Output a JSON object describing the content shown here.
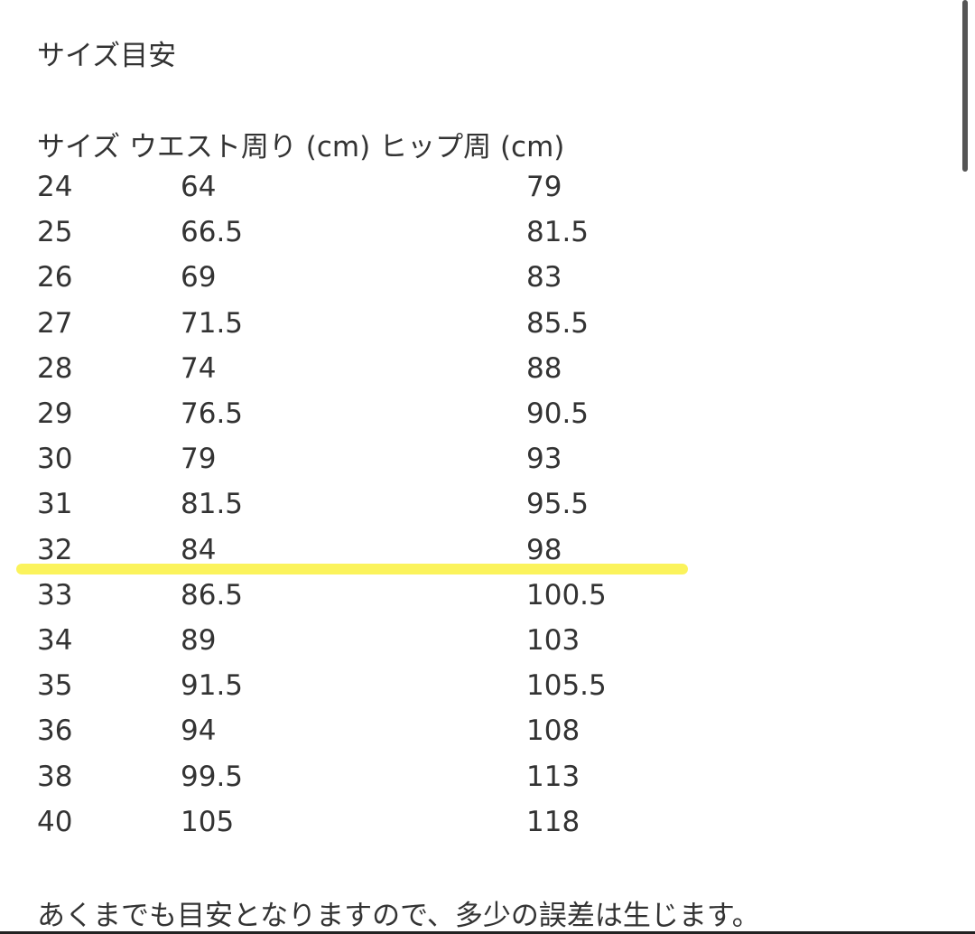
{
  "title": "サイズ目安",
  "table": {
    "headers": [
      "サイズ",
      "ウエスト周り (cm)",
      "ヒップ周 (cm)"
    ],
    "rows": [
      [
        "24",
        "64",
        "79"
      ],
      [
        "25",
        "66.5",
        "81.5"
      ],
      [
        "26",
        "69",
        "83"
      ],
      [
        "27",
        "71.5",
        "85.5"
      ],
      [
        "28",
        "74",
        "88"
      ],
      [
        "29",
        "76.5",
        "90.5"
      ],
      [
        "30",
        "79",
        "93"
      ],
      [
        "31",
        "81.5",
        "95.5"
      ],
      [
        "32",
        "84",
        "98"
      ],
      [
        "33",
        "86.5",
        "100.5"
      ],
      [
        "34",
        "89",
        "103"
      ],
      [
        "35",
        "91.5",
        "105.5"
      ],
      [
        "36",
        "94",
        "108"
      ],
      [
        "38",
        "99.5",
        "113"
      ],
      [
        "40",
        "105",
        "118"
      ]
    ],
    "highlighted_size": "32",
    "highlight_color": "#fbf24a"
  },
  "note": "あくまでも目安となりますので、多少の誤差は生じます。"
}
